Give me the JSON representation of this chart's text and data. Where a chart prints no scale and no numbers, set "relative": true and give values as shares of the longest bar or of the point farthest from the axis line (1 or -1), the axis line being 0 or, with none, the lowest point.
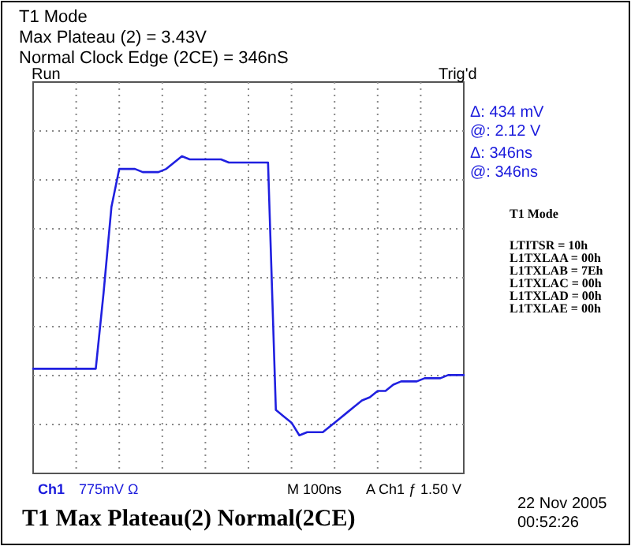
{
  "chart_data": {
    "type": "line",
    "relative": true,
    "grid": true,
    "categories": [
      null,
      null,
      null,
      null,
      null,
      null,
      null,
      null,
      null,
      null,
      null,
      null,
      null,
      null,
      null,
      null,
      null,
      null,
      null,
      null,
      null,
      null,
      null,
      null,
      null,
      null,
      null,
      null,
      null,
      null,
      null,
      null,
      null,
      null,
      null,
      null,
      null,
      null,
      null,
      null,
      null,
      null,
      null,
      null,
      null,
      null,
      null,
      null,
      null,
      null,
      null,
      null,
      null,
      null,
      null,
      null
    ],
    "series": [
      {
        "color": "#2020e0",
        "values": [
          0.33,
          0.33,
          0.33,
          0.33,
          0.33,
          0.33,
          0.33,
          0.33,
          0.33,
          0.57,
          0.84,
          0.96,
          0.96,
          0.96,
          0.95,
          0.95,
          0.95,
          0.96,
          0.98,
          1.0,
          0.99,
          0.99,
          0.99,
          0.99,
          0.99,
          0.98,
          0.98,
          0.98,
          0.98,
          0.98,
          0.98,
          0.2,
          0.18,
          0.16,
          0.12,
          0.13,
          0.13,
          0.13,
          0.15,
          0.17,
          0.19,
          0.21,
          0.23,
          0.24,
          0.26,
          0.26,
          0.28,
          0.29,
          0.29,
          0.29,
          0.3,
          0.3,
          0.3,
          0.31,
          0.31,
          0.31
        ]
      }
    ],
    "annotations": [
      "T1 Mode",
      "Max Plateau (2) = 3.43V",
      "Normal Clock Edge (2CE) = 346nS",
      "Run",
      "Trig'd",
      "Δ: 434 mV",
      "@: 2.12 V",
      "Δ: 346ns",
      "@: 346ns",
      "T1 Mode",
      "LTITSR = 10h",
      "L1TXLAA = 00h",
      "L1TXLAB = 7Eh",
      "L1TXLAC = 00h",
      "L1TXLAD = 00h",
      "L1TXLAE = 00h",
      "Ch1",
      "775mV Ω",
      "M 100ns",
      "A Ch1 ƒ 1.50 V",
      "T1 Max Plateau(2)  Normal(2CE)",
      "22 Nov 2005",
      "00:52:26"
    ]
  }
}
